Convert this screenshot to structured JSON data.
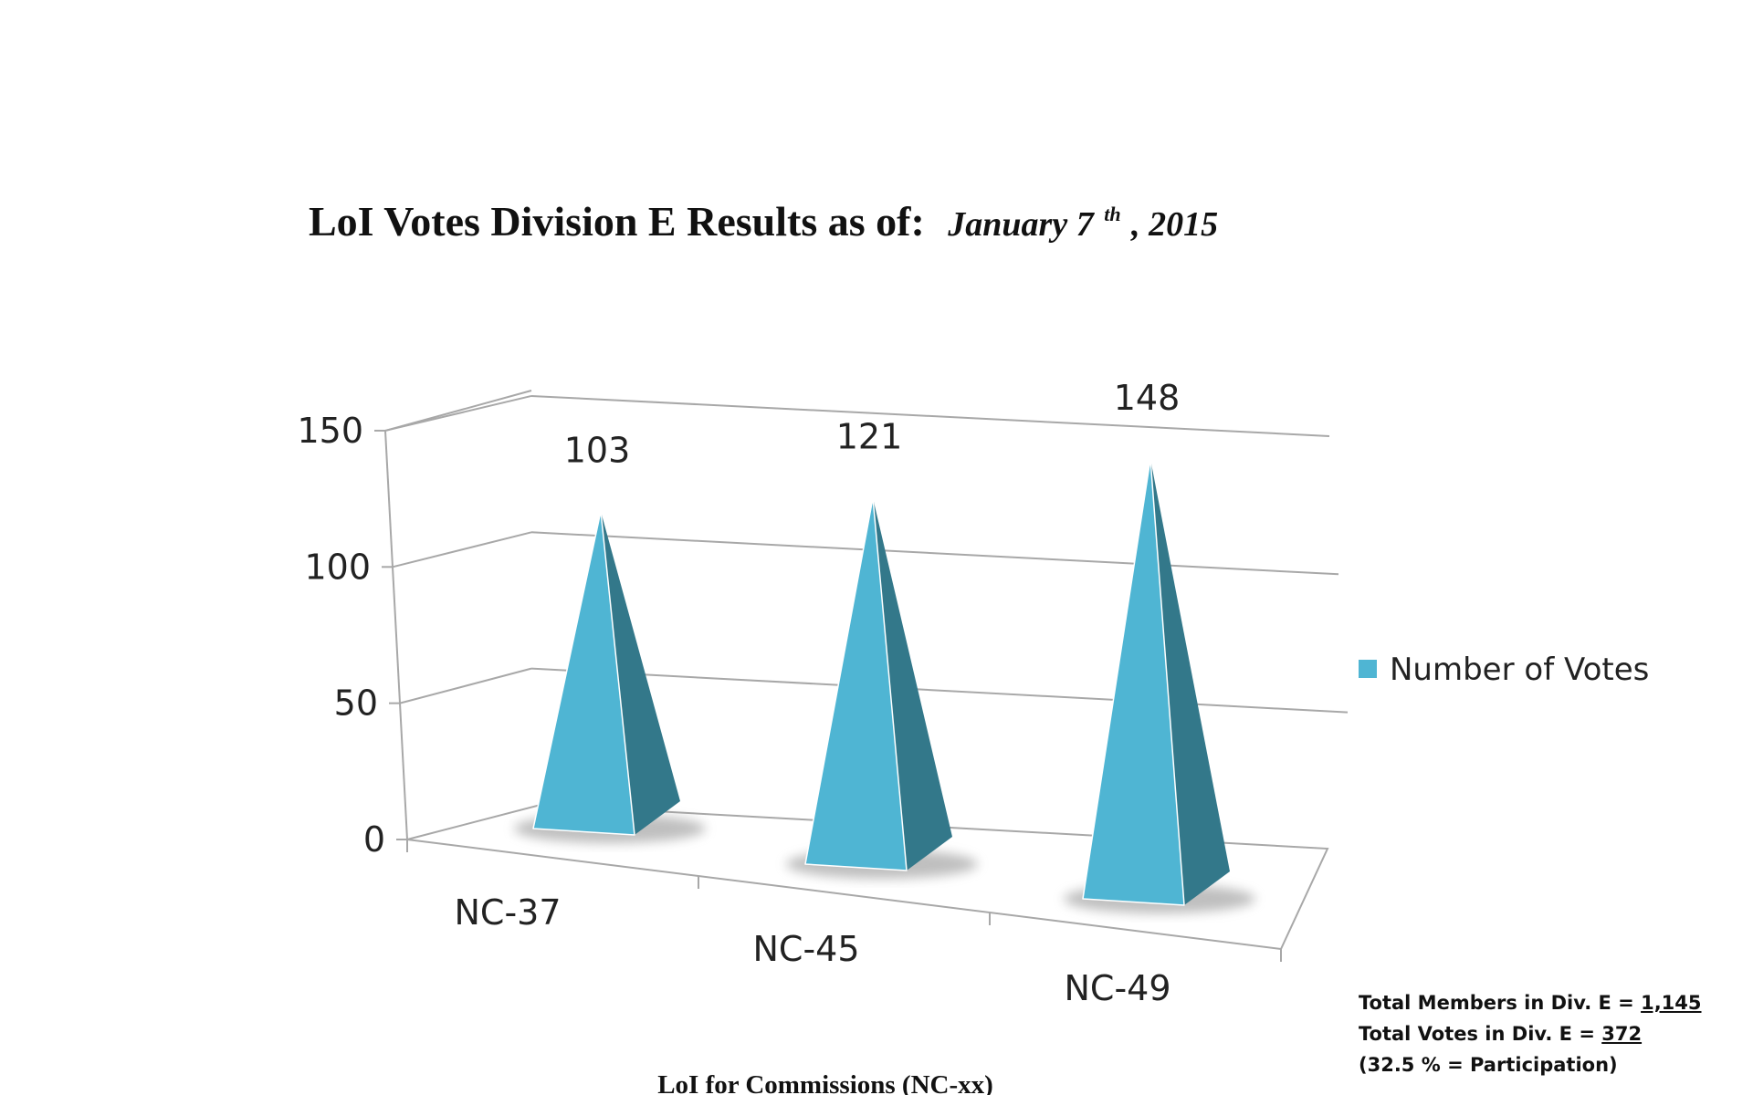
{
  "chart_data": {
    "type": "bar",
    "bar_shape": "pyramid-3d",
    "title": "LoI Votes Division E Results as of:",
    "title_date": {
      "month_day": "January 7",
      "ordinal_suffix": "th",
      "year_part": ", 2015"
    },
    "xlabel": "LoI for Commissions (NC-xx)",
    "ylabel": "",
    "categories": [
      "NC-37",
      "NC-45",
      "NC-49"
    ],
    "series": [
      {
        "name": "Number of Votes",
        "values": [
          103,
          121,
          148
        ],
        "color": "#4fb5d3",
        "side_color": "#33788a"
      }
    ],
    "yticks": [
      0,
      50,
      100,
      150
    ],
    "ylim": [
      0,
      150
    ],
    "grid": true,
    "legend": "right",
    "data_labels": true
  },
  "notes": {
    "members_label": "Total Members in Div. E = ",
    "members_value": "1,145",
    "votes_label": "Total Votes in Div. E = ",
    "votes_value": "372",
    "participation": "(32.5 % = Participation)"
  }
}
